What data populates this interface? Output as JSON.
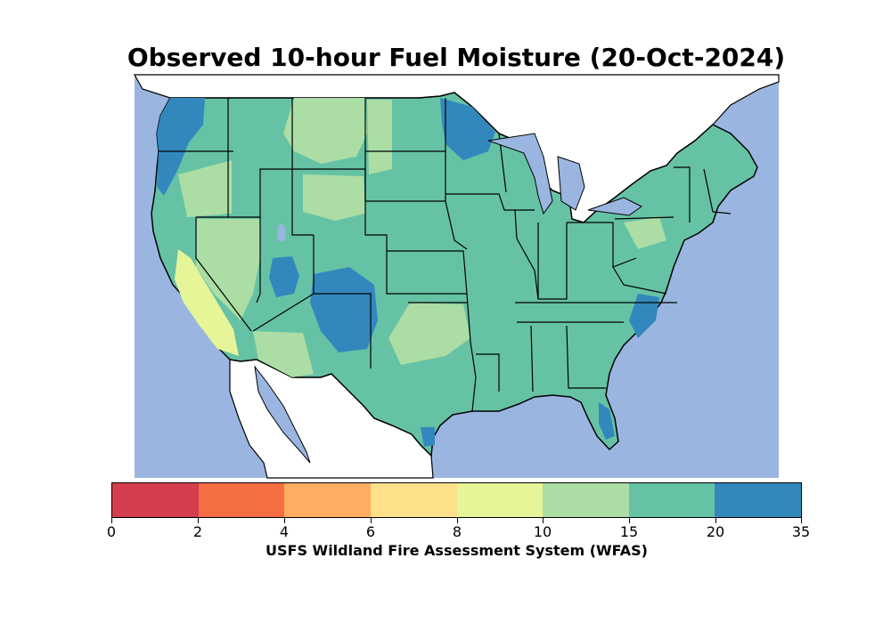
{
  "title": "Observed 10-hour Fuel Moisture (20-Oct-2024)",
  "colorbar": {
    "label": "USFS Wildland Fire Assessment System (WFAS)",
    "ticks": [
      "0",
      "2",
      "4",
      "6",
      "8",
      "10",
      "15",
      "20",
      "35"
    ],
    "colors": [
      "#d53e4f",
      "#f46d43",
      "#fdae61",
      "#fee08b",
      "#e6f598",
      "#abdda4",
      "#66c2a5",
      "#3288bd"
    ]
  },
  "map_colors": {
    "water": "#9ab6e0",
    "land_outside": "#ffffff",
    "moisture_15_20": "#66c2a5",
    "moisture_10_15": "#abdda4",
    "moisture_8_10": "#e6f598",
    "moisture_20_35": "#3288bd",
    "borders": "#000000"
  }
}
